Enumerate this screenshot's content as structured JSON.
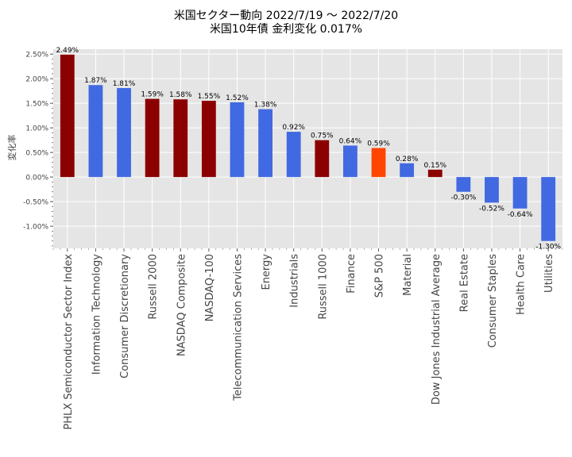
{
  "chart_data": {
    "type": "bar",
    "title": "米国セクター動向 2022/7/19 〜 2022/7/20",
    "subtitle": "米国10年債 金利変化 0.017%",
    "ylabel": "変化率",
    "xlabel": "",
    "ylim": [
      -1.45,
      2.6
    ],
    "yticks": [
      -1.0,
      -0.5,
      0.0,
      0.5,
      1.0,
      1.5,
      2.0,
      2.5
    ],
    "ytick_labels": [
      "-1.00%",
      "-0.50%",
      "0.00%",
      "0.50%",
      "1.00%",
      "1.50%",
      "2.00%",
      "2.50%"
    ],
    "grid": true,
    "background": "#e5e5e5",
    "categories": [
      "PHLX Semiconductor Sector Index",
      "Information Technology",
      "Consumer Discretionary",
      "Russell 2000",
      "NASDAQ Composite",
      "NASDAQ-100",
      "Telecommunication Services",
      "Energy",
      "Industrials",
      "Russell 1000",
      "Finance",
      "S&P 500",
      "Material",
      "Dow Jones Industrial Average",
      "Real Estate",
      "Consumer Staples",
      "Health Care",
      "Utilities"
    ],
    "values": [
      2.49,
      1.87,
      1.81,
      1.59,
      1.58,
      1.55,
      1.52,
      1.38,
      0.92,
      0.75,
      0.64,
      0.59,
      0.28,
      0.15,
      -0.3,
      -0.52,
      -0.64,
      -1.3
    ],
    "value_labels": [
      "2.49%",
      "1.87%",
      "1.81%",
      "1.59%",
      "1.58%",
      "1.55%",
      "1.52%",
      "1.38%",
      "0.92%",
      "0.75%",
      "0.64%",
      "0.59%",
      "0.28%",
      "0.15%",
      "-0.30%",
      "-0.52%",
      "-0.64%",
      "-1.30%"
    ],
    "colors": [
      "#8b0000",
      "#4169e1",
      "#4169e1",
      "#8b0000",
      "#8b0000",
      "#8b0000",
      "#4169e1",
      "#4169e1",
      "#4169e1",
      "#8b0000",
      "#4169e1",
      "#ff4500",
      "#4169e1",
      "#8b0000",
      "#4169e1",
      "#4169e1",
      "#4169e1",
      "#4169e1"
    ]
  }
}
